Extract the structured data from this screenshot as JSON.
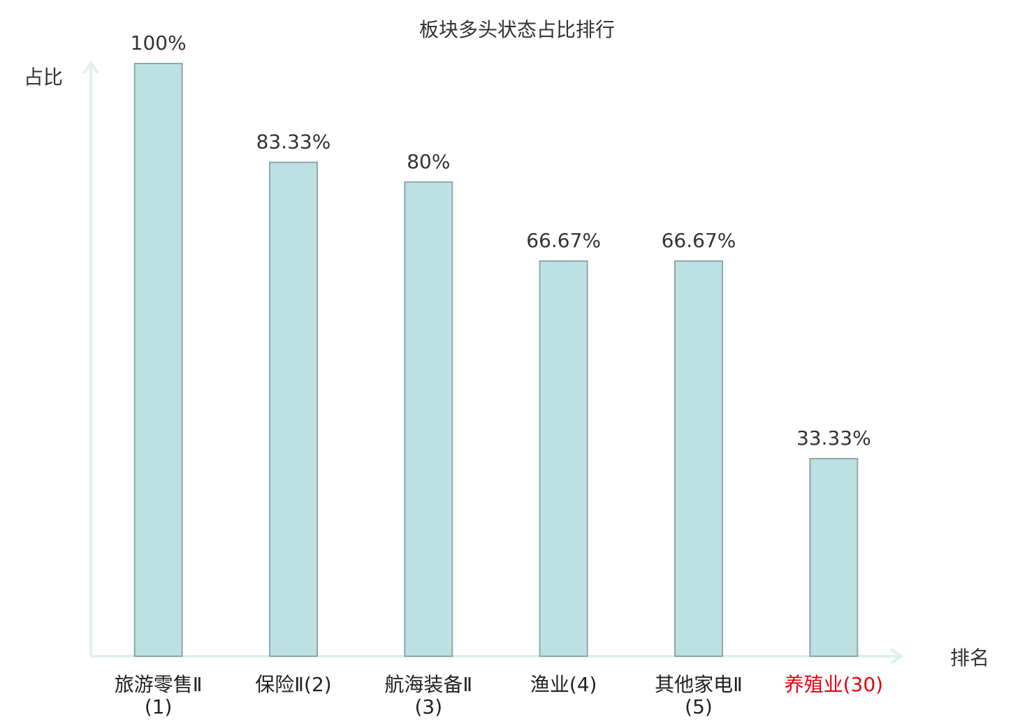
{
  "chart_data": {
    "type": "bar",
    "title": "板块多头状态占比排行",
    "y_label": "占比",
    "x_label": "排名",
    "categories": [
      "旅游零售Ⅱ(1)",
      "保险Ⅱ(2)",
      "航海装备Ⅱ(3)",
      "渔业(4)",
      "其他家电Ⅱ(5)",
      "养殖业(30)"
    ],
    "values": [
      100,
      83.33,
      80,
      66.67,
      66.67,
      33.33
    ],
    "value_labels": [
      "100%",
      "83.33%",
      "80%",
      "66.67%",
      "66.67%",
      "33.33%"
    ],
    "color": "#bde0e3",
    "edge_color": "#8aa8ab",
    "axis_color": "#dff0ee",
    "category_label_colors": [
      "#222222",
      "#222222",
      "#222222",
      "#222222",
      "#222222",
      "#e60012"
    ],
    "ylim": [
      0,
      100
    ]
  }
}
